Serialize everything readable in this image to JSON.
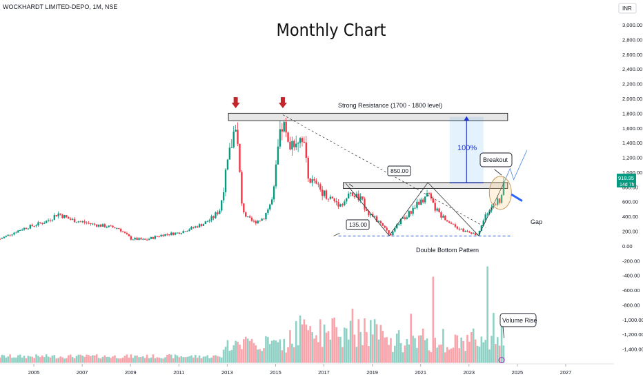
{
  "header": {
    "symbol_line": "WOCKHARDT LIMITED-DEPO, 1M, NSE",
    "currency": "INR"
  },
  "chart_data": {
    "type": "candlestick-with-volume",
    "title": "Monthly Chart",
    "price_axis": {
      "ticks": [
        3000,
        2800,
        2600,
        2400,
        2200,
        2000,
        1800,
        1600,
        1400,
        1200,
        1000,
        800,
        600,
        400,
        200,
        0,
        -200,
        -400,
        -600,
        -800,
        -1000,
        -1200,
        -1400
      ],
      "tick_labels": [
        "3,000.00",
        "2,800.00",
        "2,600.00",
        "2,400.00",
        "2,200.00",
        "2,000.00",
        "1,800.00",
        "1,600.00",
        "1,400.00",
        "1,200.00",
        "1,000.00",
        "800.00",
        "600.00",
        "400.00",
        "200.00",
        "0.00",
        "-200.00",
        "-400.00",
        "-600.00",
        "-800.00",
        "-1,000.00",
        "-1,200.00",
        "-1,400.00"
      ],
      "ylim": [
        -1600,
        3150
      ]
    },
    "time_axis": {
      "ticks": [
        2005,
        2007,
        2009,
        2011,
        2013,
        2015,
        2017,
        2019,
        2021,
        2023,
        2025,
        2027
      ],
      "tick_labels": [
        "2005",
        "2007",
        "2009",
        "2011",
        "2013",
        "2015",
        "2017",
        "2019",
        "2021",
        "2023",
        "2025",
        "2027"
      ],
      "xlim": [
        2003.6,
        2029.0
      ]
    },
    "price_path": [
      [
        2003.6,
        95
      ],
      [
        2004.5,
        230
      ],
      [
        2005.5,
        330
      ],
      [
        2006.0,
        440
      ],
      [
        2006.5,
        360
      ],
      [
        2007.5,
        290
      ],
      [
        2008.5,
        240
      ],
      [
        2009.0,
        100
      ],
      [
        2009.6,
        80
      ],
      [
        2010.3,
        150
      ],
      [
        2011.0,
        180
      ],
      [
        2011.6,
        250
      ],
      [
        2012.0,
        300
      ],
      [
        2012.4,
        380
      ],
      [
        2012.7,
        500
      ],
      [
        2012.9,
        900
      ],
      [
        2013.1,
        1250
      ],
      [
        2013.25,
        1500
      ],
      [
        2013.35,
        1700
      ],
      [
        2013.5,
        1050
      ],
      [
        2013.6,
        550
      ],
      [
        2013.8,
        380
      ],
      [
        2014.1,
        320
      ],
      [
        2014.5,
        380
      ],
      [
        2014.9,
        650
      ],
      [
        2015.1,
        1300
      ],
      [
        2015.3,
        1680
      ],
      [
        2015.5,
        1350
      ],
      [
        2015.8,
        1450
      ],
      [
        2016.1,
        1500
      ],
      [
        2016.4,
        900
      ],
      [
        2016.8,
        780
      ],
      [
        2017.2,
        660
      ],
      [
        2017.7,
        560
      ],
      [
        2018.1,
        700
      ],
      [
        2018.5,
        640
      ],
      [
        2018.9,
        430
      ],
      [
        2019.3,
        310
      ],
      [
        2019.6,
        200
      ],
      [
        2019.8,
        150
      ],
      [
        2020.1,
        320
      ],
      [
        2020.5,
        430
      ],
      [
        2020.9,
        600
      ],
      [
        2021.3,
        700
      ],
      [
        2021.6,
        500
      ],
      [
        2021.9,
        400
      ],
      [
        2022.3,
        300
      ],
      [
        2022.8,
        200
      ],
      [
        2023.1,
        170
      ],
      [
        2023.35,
        140
      ],
      [
        2023.6,
        360
      ],
      [
        2023.9,
        520
      ],
      [
        2024.1,
        600
      ],
      [
        2024.3,
        580
      ],
      [
        2024.45,
        919
      ]
    ],
    "last_price": {
      "value": 918.95,
      "label": "918.95",
      "countdown": "14d 7h"
    },
    "levels": {
      "resistance_zone": [
        1700,
        1800
      ],
      "breakout_zone": [
        780,
        860
      ],
      "support_line": 135,
      "tags": {
        "breakout_level": "850.00",
        "support_level": "135.00"
      }
    },
    "annotations": {
      "resistance": "Strong Resistance (1700 - 1800 level)",
      "percent": "100%",
      "breakout": "Breakout",
      "gap": "Gap",
      "pattern": "Double Bottom Pattern",
      "volume": "Volume Rise"
    },
    "volume_markers": [
      [
        2013.6,
        0.16
      ],
      [
        2014.8,
        0.22
      ],
      [
        2015.6,
        0.38
      ],
      [
        2016.0,
        0.55
      ],
      [
        2018.2,
        0.63
      ],
      [
        2020.1,
        0.38
      ],
      [
        2020.6,
        0.57
      ],
      [
        2021.5,
        1.0
      ],
      [
        2023.75,
        1.12
      ],
      [
        2024.0,
        0.58
      ],
      [
        2024.35,
        0.43
      ]
    ]
  }
}
